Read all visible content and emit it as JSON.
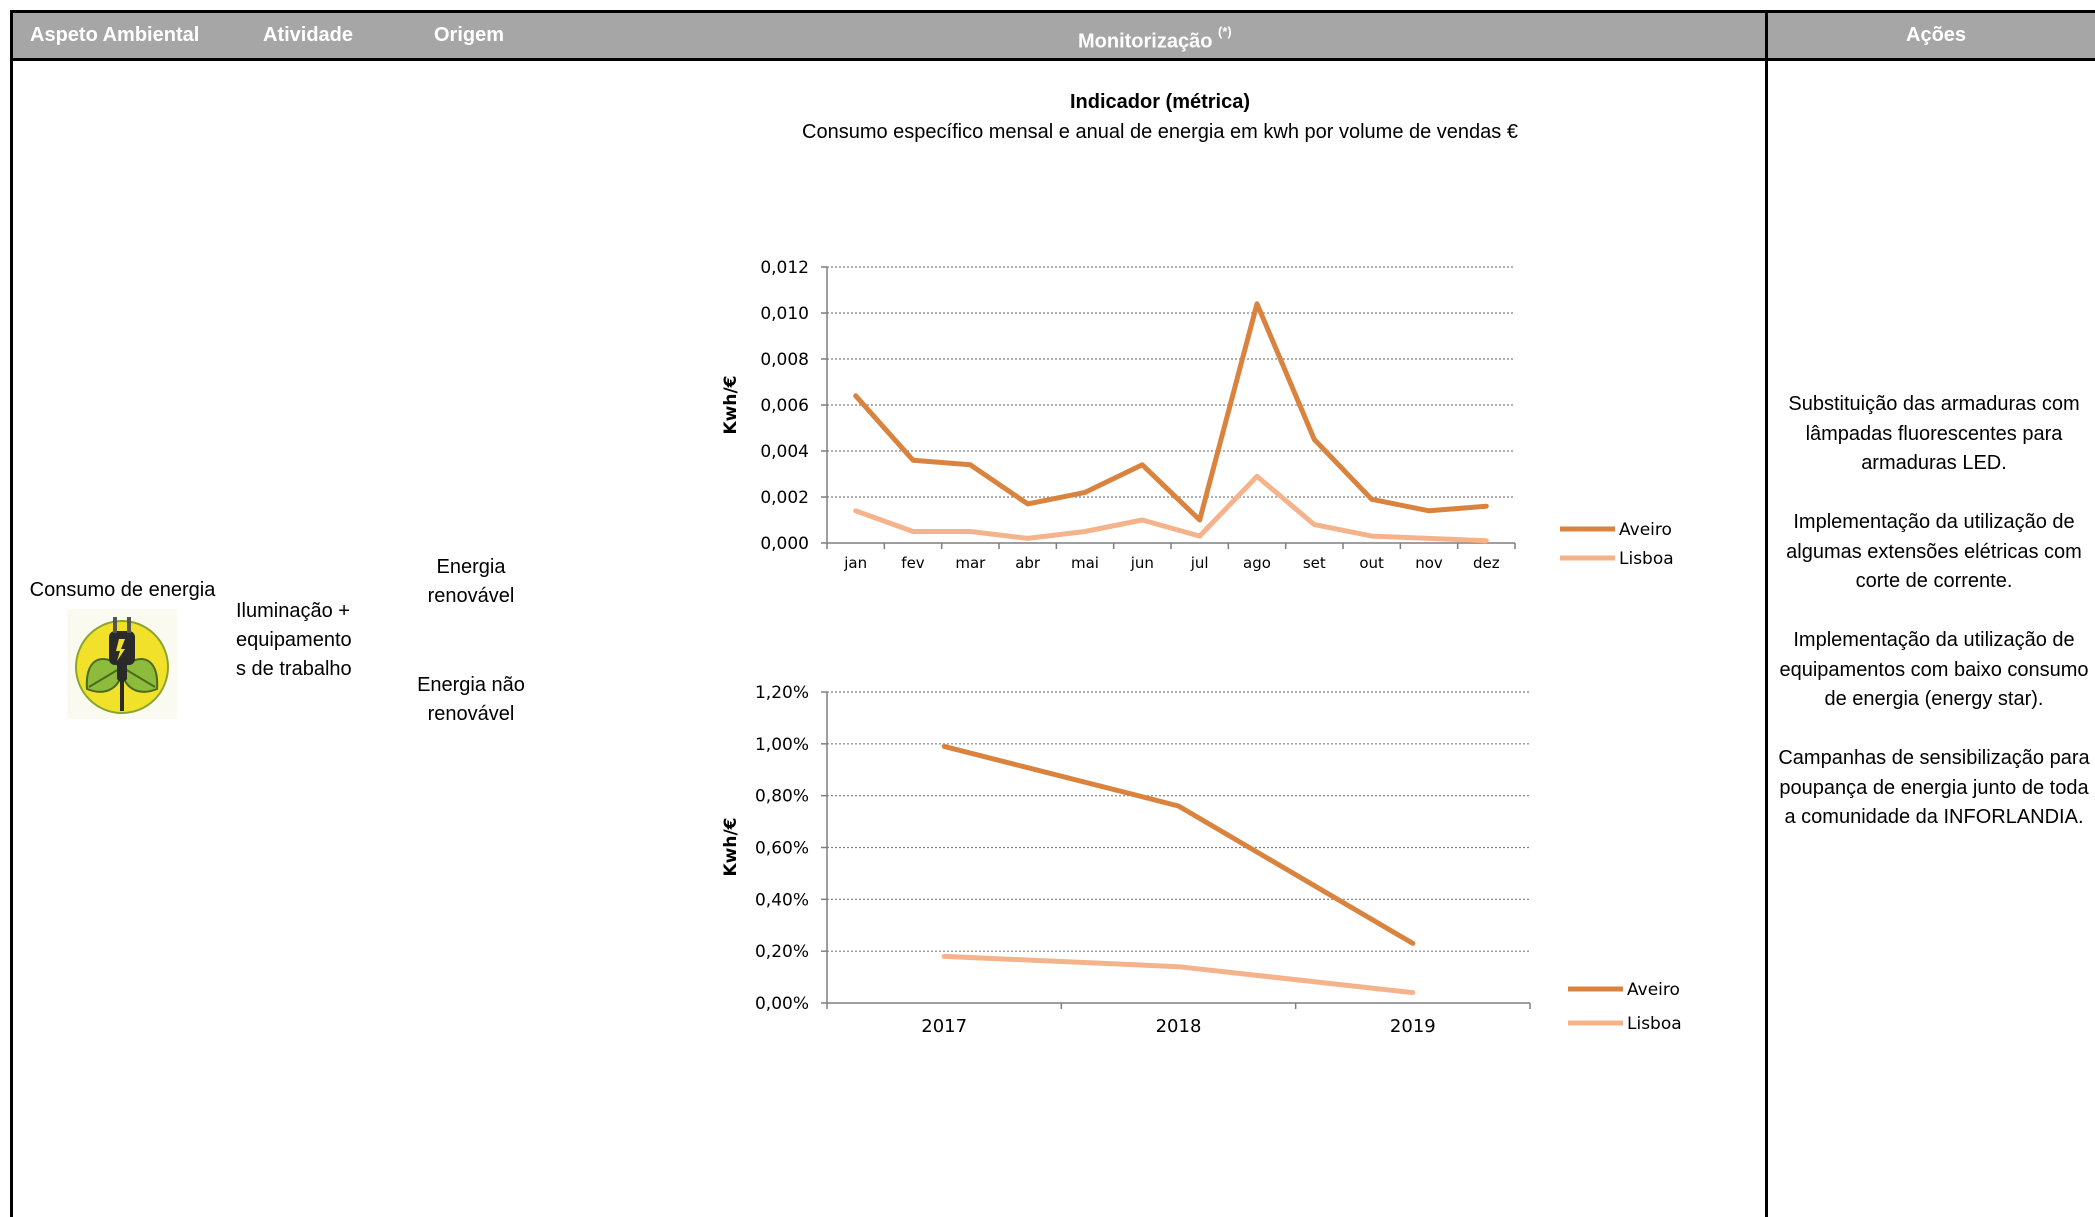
{
  "header": {
    "aspeto": "Aspeto Ambiental",
    "atividade": "Atividade",
    "origem": "Origem",
    "monitorizacao": "Monitorização",
    "monitorizacao_note": "(*)",
    "acoes": "Ações"
  },
  "row": {
    "aspeto": "Consumo de energia",
    "atividade": [
      "Iluminação +",
      "equipamento",
      "s de trabalho"
    ],
    "origem_1": [
      "Energia",
      "renovável"
    ],
    "origem_2": [
      "Energia não",
      "renovável"
    ],
    "icon": "plug-leaf-icon"
  },
  "indicator": {
    "title": "Indicador (métrica)",
    "subtitle": "Consumo específico mensal e anual de energia em kwh por volume de vendas €"
  },
  "actions": [
    "Substituição das armaduras com lâmpadas fluorescentes para armaduras LED.",
    "Implementação da utilização de algumas extensões elétricas com corte de corrente.",
    "Implementação da utilização de equipamentos com baixo consumo de energia (energy star).",
    "Campanhas de sensibilização para poupança de energia junto de toda a comunidade da INFORLANDIA."
  ],
  "colors": {
    "header_bg": "#a6a6a6",
    "aveiro": "#d9833f",
    "lisboa": "#f5b38c"
  },
  "chart_data": [
    {
      "type": "line",
      "ylabel": "Kwh/€",
      "categories": [
        "jan",
        "fev",
        "mar",
        "abr",
        "mai",
        "jun",
        "jul",
        "ago",
        "set",
        "out",
        "nov",
        "dez"
      ],
      "ylim": [
        0,
        0.012
      ],
      "yticks": [
        "0,000",
        "0,002",
        "0,004",
        "0,006",
        "0,008",
        "0,010",
        "0,012"
      ],
      "grid": true,
      "legend": "right",
      "series": [
        {
          "name": "Aveiro",
          "values": [
            0.0064,
            0.0036,
            0.0034,
            0.0017,
            0.0022,
            0.0034,
            0.001,
            0.0104,
            0.0045,
            0.0019,
            0.0014,
            0.0016
          ]
        },
        {
          "name": "Lisboa",
          "values": [
            0.0014,
            0.0005,
            0.0005,
            0.0002,
            0.0005,
            0.001,
            0.0003,
            0.0029,
            0.0008,
            0.0003,
            0.0002,
            0.0001
          ]
        }
      ]
    },
    {
      "type": "line",
      "ylabel": "Kwh/€",
      "categories": [
        "2017",
        "2018",
        "2019"
      ],
      "ylim": [
        0,
        0.012
      ],
      "yticks": [
        "0,00%",
        "0,20%",
        "0,40%",
        "0,60%",
        "0,80%",
        "1,00%",
        "1,20%"
      ],
      "grid": true,
      "legend": "right",
      "series": [
        {
          "name": "Aveiro",
          "values": [
            0.0099,
            0.0076,
            0.0023
          ]
        },
        {
          "name": "Lisboa",
          "values": [
            0.0018,
            0.0014,
            0.0004
          ]
        }
      ]
    }
  ]
}
